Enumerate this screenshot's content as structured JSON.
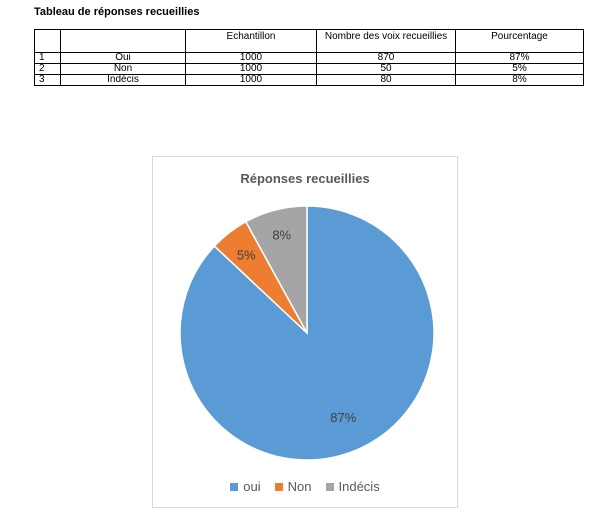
{
  "document": {
    "title": "Tableau de réponses recueillies"
  },
  "table": {
    "headers": [
      "",
      "",
      "Echantillon",
      "Nombre des voix recueillies",
      "Pourcentage"
    ],
    "rows": [
      [
        "1",
        "Oui",
        "1000",
        "870",
        "87%"
      ],
      [
        "2",
        "Non",
        "1000",
        "50",
        "5%"
      ],
      [
        "3",
        "Indécis",
        "1000",
        "80",
        "8%"
      ]
    ]
  },
  "chart_data": {
    "type": "pie",
    "title": "Réponses recueillies",
    "legend_position": "bottom",
    "categories": [
      "oui",
      "Non",
      "Indécis"
    ],
    "values": [
      87,
      5,
      8
    ],
    "data_labels": [
      "87%",
      "5%",
      "8%"
    ],
    "colors": [
      "#5b9bd5",
      "#ed7d31",
      "#a5a5a5"
    ]
  }
}
